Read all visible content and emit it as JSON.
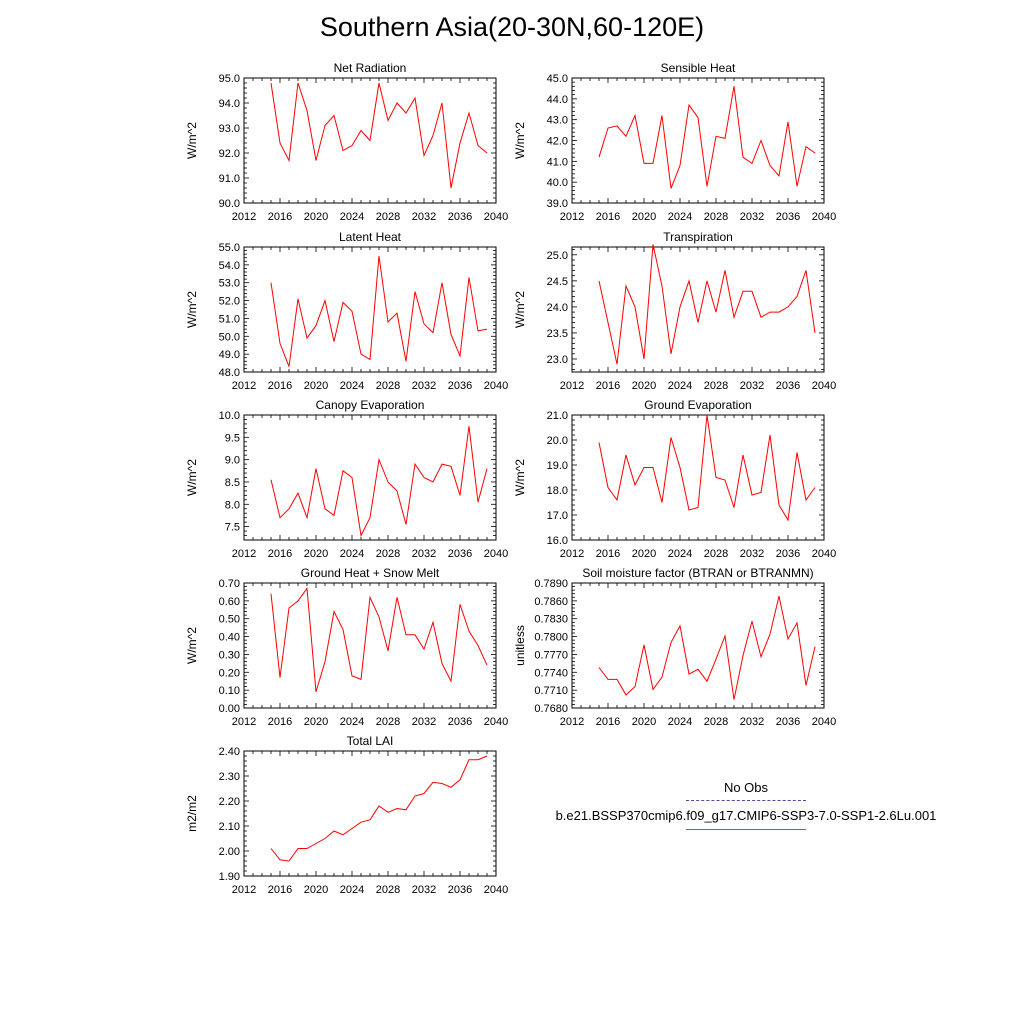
{
  "title": "Southern Asia(20-30N,60-120E)",
  "years": [
    2015,
    2016,
    2017,
    2018,
    2019,
    2020,
    2021,
    2022,
    2023,
    2024,
    2025,
    2026,
    2027,
    2028,
    2029,
    2030,
    2031,
    2032,
    2033,
    2034,
    2035,
    2036,
    2037,
    2038,
    2039
  ],
  "line_color": "#ff0000",
  "legend": {
    "header": "No Obs",
    "run_name": "b.e21.BSSP370cmip6.f09_g17.CMIP6-SSP3-7.0-SSP1-2.6Lu.001",
    "obs_color": "#4a4aa8",
    "run_color": "#e63b3b"
  },
  "chart_data": [
    {
      "type": "line",
      "title": "Net Radiation",
      "ylabel": "W/m^2",
      "xlim": [
        2012,
        2040
      ],
      "ylim": [
        90.0,
        95.0
      ],
      "xticks": [
        2012,
        2016,
        2020,
        2024,
        2028,
        2032,
        2036,
        2040
      ],
      "yticks": [
        90.0,
        91.0,
        92.0,
        93.0,
        94.0,
        95.0
      ],
      "ytick_labels": [
        "90.0",
        "91.0",
        "92.0",
        "93.0",
        "94.0",
        "95.0"
      ],
      "values": [
        94.8,
        92.4,
        91.7,
        94.8,
        93.7,
        91.7,
        93.1,
        93.5,
        92.1,
        92.3,
        92.9,
        92.5,
        94.8,
        93.3,
        94.0,
        93.6,
        94.2,
        91.9,
        92.7,
        94.0,
        90.6,
        92.4,
        93.6,
        92.3,
        92.0
      ]
    },
    {
      "type": "line",
      "title": "Sensible Heat",
      "ylabel": "W/m^2",
      "xlim": [
        2012,
        2040
      ],
      "ylim": [
        39.0,
        45.0
      ],
      "xticks": [
        2012,
        2016,
        2020,
        2024,
        2028,
        2032,
        2036,
        2040
      ],
      "yticks": [
        39.0,
        40.0,
        41.0,
        42.0,
        43.0,
        44.0,
        45.0
      ],
      "ytick_labels": [
        "39.0",
        "40.0",
        "41.0",
        "42.0",
        "43.0",
        "44.0",
        "45.0"
      ],
      "values": [
        41.2,
        42.6,
        42.7,
        42.2,
        43.2,
        40.9,
        40.9,
        43.2,
        39.7,
        40.8,
        43.7,
        43.1,
        39.8,
        42.2,
        42.1,
        44.6,
        41.2,
        40.9,
        42.0,
        40.8,
        40.3,
        42.9,
        39.8,
        41.7,
        41.4
      ]
    },
    {
      "type": "line",
      "title": "Latent Heat",
      "ylabel": "W/m^2",
      "xlim": [
        2012,
        2040
      ],
      "ylim": [
        48.0,
        55.0
      ],
      "xticks": [
        2012,
        2016,
        2020,
        2024,
        2028,
        2032,
        2036,
        2040
      ],
      "yticks": [
        48.0,
        49.0,
        50.0,
        51.0,
        52.0,
        53.0,
        54.0,
        55.0
      ],
      "ytick_labels": [
        "48.0",
        "49.0",
        "50.0",
        "51.0",
        "52.0",
        "53.0",
        "54.0",
        "55.0"
      ],
      "values": [
        53.0,
        49.6,
        48.3,
        52.1,
        49.9,
        50.6,
        52.0,
        49.7,
        51.9,
        51.4,
        49.0,
        48.7,
        54.5,
        50.8,
        51.3,
        48.6,
        52.5,
        50.7,
        50.2,
        53.0,
        50.1,
        48.9,
        53.3,
        50.3,
        50.4
      ]
    },
    {
      "type": "line",
      "title": "Transpiration",
      "ylabel": "W/m^2",
      "xlim": [
        2012,
        2040
      ],
      "ylim": [
        22.75,
        25.15
      ],
      "xticks": [
        2012,
        2016,
        2020,
        2024,
        2028,
        2032,
        2036,
        2040
      ],
      "yticks": [
        23.0,
        23.5,
        24.0,
        24.5,
        25.0
      ],
      "ytick_labels": [
        "23.0",
        "23.5",
        "24.0",
        "24.5",
        "25.0"
      ],
      "values": [
        24.5,
        23.7,
        22.9,
        24.4,
        24.0,
        23.0,
        25.2,
        24.4,
        23.1,
        24.0,
        24.5,
        23.7,
        24.5,
        23.9,
        24.7,
        23.8,
        24.3,
        24.3,
        23.8,
        23.9,
        23.9,
        24.0,
        24.2,
        24.7,
        23.5
      ]
    },
    {
      "type": "line",
      "title": "Canopy Evaporation",
      "ylabel": "W/m^2",
      "xlim": [
        2012,
        2040
      ],
      "ylim": [
        7.2,
        10.0
      ],
      "xticks": [
        2012,
        2016,
        2020,
        2024,
        2028,
        2032,
        2036,
        2040
      ],
      "yticks": [
        7.5,
        8.0,
        8.5,
        9.0,
        9.5,
        10.0
      ],
      "ytick_labels": [
        "7.5",
        "8.0",
        "8.5",
        "9.0",
        "9.5",
        "10.0"
      ],
      "values": [
        8.55,
        7.7,
        7.9,
        8.25,
        7.7,
        8.8,
        7.9,
        7.75,
        8.75,
        8.6,
        7.3,
        7.7,
        9.0,
        8.5,
        8.3,
        7.55,
        8.9,
        8.6,
        8.5,
        8.9,
        8.85,
        8.2,
        9.75,
        8.05,
        8.8
      ]
    },
    {
      "type": "line",
      "title": "Ground Evaporation",
      "ylabel": "W/m^2",
      "xlim": [
        2012,
        2040
      ],
      "ylim": [
        16.0,
        21.0
      ],
      "xticks": [
        2012,
        2016,
        2020,
        2024,
        2028,
        2032,
        2036,
        2040
      ],
      "yticks": [
        16.0,
        17.0,
        18.0,
        19.0,
        20.0,
        21.0
      ],
      "ytick_labels": [
        "16.0",
        "17.0",
        "18.0",
        "19.0",
        "20.0",
        "21.0"
      ],
      "values": [
        19.9,
        18.1,
        17.6,
        19.4,
        18.2,
        18.9,
        18.9,
        17.5,
        20.1,
        18.9,
        17.2,
        17.3,
        21.0,
        18.5,
        18.4,
        17.3,
        19.4,
        17.8,
        17.9,
        20.2,
        17.4,
        16.8,
        19.5,
        17.6,
        18.1
      ]
    },
    {
      "type": "line",
      "title": "Ground Heat + Snow Melt",
      "ylabel": "W/m^2",
      "xlim": [
        2012,
        2040
      ],
      "ylim": [
        0.0,
        0.7
      ],
      "xticks": [
        2012,
        2016,
        2020,
        2024,
        2028,
        2032,
        2036,
        2040
      ],
      "yticks": [
        0.0,
        0.1,
        0.2,
        0.3,
        0.4,
        0.5,
        0.6,
        0.7
      ],
      "ytick_labels": [
        "0.00",
        "0.10",
        "0.20",
        "0.30",
        "0.40",
        "0.50",
        "0.60",
        "0.70"
      ],
      "values": [
        0.64,
        0.17,
        0.56,
        0.6,
        0.67,
        0.09,
        0.26,
        0.54,
        0.44,
        0.18,
        0.16,
        0.62,
        0.51,
        0.32,
        0.62,
        0.41,
        0.41,
        0.33,
        0.48,
        0.25,
        0.15,
        0.58,
        0.43,
        0.35,
        0.24
      ]
    },
    {
      "type": "line",
      "title": "Soil moisture factor (BTRAN or BTRANMN)",
      "ylabel": "unitless",
      "xlim": [
        2012,
        2040
      ],
      "ylim": [
        0.768,
        0.789
      ],
      "xticks": [
        2012,
        2016,
        2020,
        2024,
        2028,
        2032,
        2036,
        2040
      ],
      "yticks": [
        0.768,
        0.771,
        0.774,
        0.777,
        0.78,
        0.783,
        0.786,
        0.789
      ],
      "ytick_labels": [
        "0.7680",
        "0.7710",
        "0.7740",
        "0.7770",
        "0.7800",
        "0.7830",
        "0.7860",
        "0.7890"
      ],
      "values": [
        0.7748,
        0.7728,
        0.7728,
        0.7702,
        0.7716,
        0.7786,
        0.7711,
        0.7732,
        0.779,
        0.7818,
        0.7737,
        0.7745,
        0.7725,
        0.7762,
        0.7801,
        0.7694,
        0.7768,
        0.7826,
        0.7766,
        0.7804,
        0.7868,
        0.7796,
        0.7823,
        0.7718,
        0.7783
      ]
    },
    {
      "type": "line",
      "title": "Total LAI",
      "ylabel": "m2/m2",
      "xlim": [
        2012,
        2040
      ],
      "ylim": [
        1.9,
        2.4
      ],
      "xticks": [
        2012,
        2016,
        2020,
        2024,
        2028,
        2032,
        2036,
        2040
      ],
      "yticks": [
        1.9,
        2.0,
        2.1,
        2.2,
        2.3,
        2.4
      ],
      "ytick_labels": [
        "1.90",
        "2.00",
        "2.10",
        "2.20",
        "2.30",
        "2.40"
      ],
      "values": [
        2.01,
        1.965,
        1.96,
        2.01,
        2.01,
        2.03,
        2.05,
        2.08,
        2.065,
        2.09,
        2.115,
        2.125,
        2.18,
        2.155,
        2.17,
        2.165,
        2.22,
        2.23,
        2.275,
        2.27,
        2.255,
        2.285,
        2.365,
        2.365,
        2.38
      ]
    }
  ]
}
